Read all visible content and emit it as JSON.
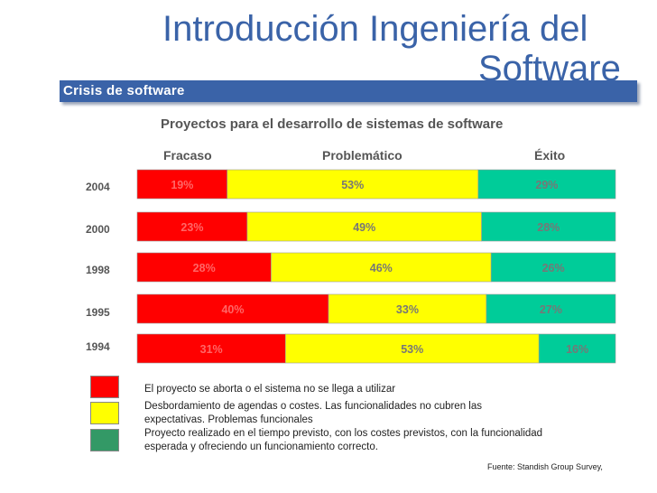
{
  "slide": {
    "title_line1": "Introducción Ingeniería del",
    "title_line2": "Software",
    "banner": "Crisis de software",
    "source": "Fuente: Standish Group Survey,"
  },
  "colors": {
    "fracaso": "#ff0000",
    "problematico": "#ffff00",
    "exito": "#00cc99",
    "title": "#3a63a8",
    "legend_exito": "#339966"
  },
  "chart_data": {
    "type": "bar",
    "orientation": "horizontal-stacked-100",
    "title": "Proyectos para el desarrollo de sistemas de software",
    "categories": [
      "2004",
      "2000",
      "1998",
      "1995",
      "1994"
    ],
    "series": [
      {
        "name": "Fracaso",
        "values": [
          19,
          23,
          28,
          40,
          31
        ],
        "labels": [
          "19%",
          "23%",
          "28%",
          "40%",
          "31%"
        ]
      },
      {
        "name": "Problemático",
        "values": [
          53,
          49,
          46,
          33,
          53
        ],
        "labels": [
          "53%",
          "49%",
          "46%",
          "33%",
          "53%"
        ]
      },
      {
        "name": "Éxito",
        "values": [
          29,
          28,
          26,
          27,
          16
        ],
        "labels": [
          "29%",
          "28%",
          "26%",
          "27%",
          "16%"
        ]
      }
    ],
    "legend": [
      {
        "series": "Fracaso",
        "text": "El proyecto se aborta o el sistema no se llega a utilizar"
      },
      {
        "series": "Problemático",
        "text": "Desbordamiento de agendas o costes. Las funcionalidades no cubren las expectativas. Problemas funcionales"
      },
      {
        "series": "Éxito",
        "text": "Proyecto realizado en el tiempo previsto, con los costes previstos, con la funcionalidad esperada y ofreciendo un funcionamiento correcto."
      }
    ]
  }
}
